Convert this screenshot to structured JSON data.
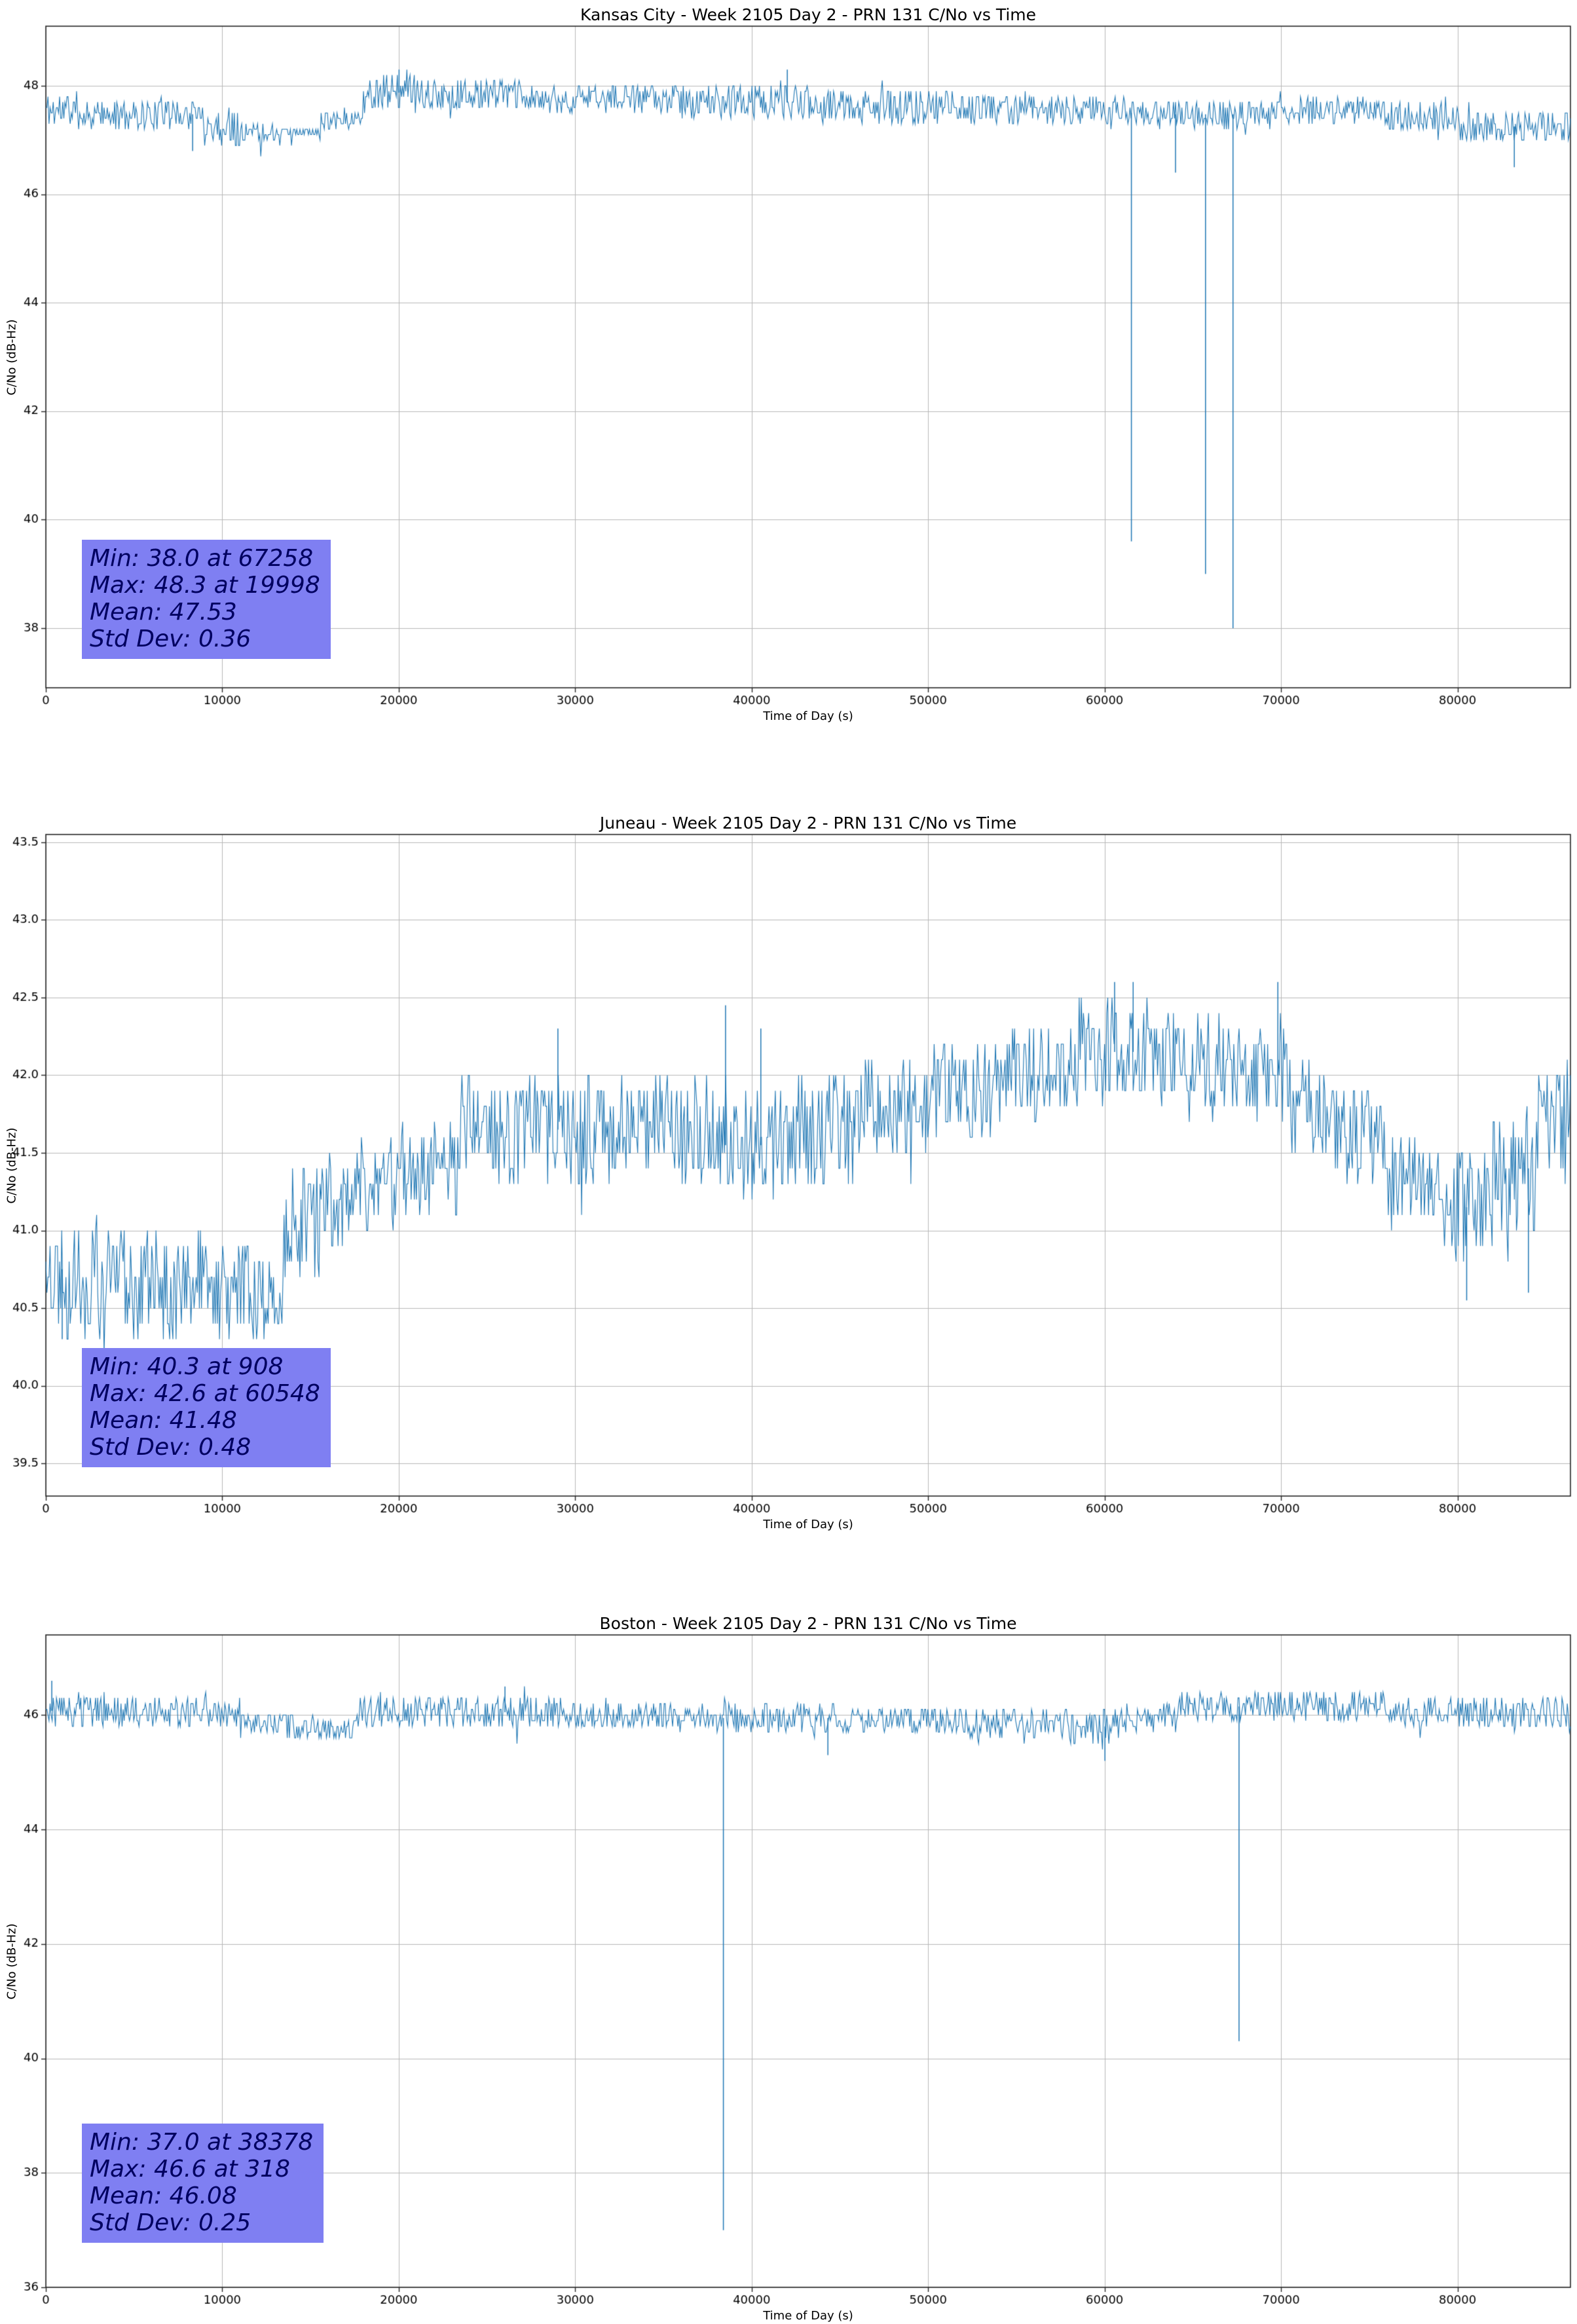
{
  "page": {
    "background": "#ffffff"
  },
  "chart_data": [
    {
      "type": "line",
      "title": "Kansas City - Week 2105 Day 2 - PRN 131 C/No vs Time",
      "xlabel": "Time of Day (s)",
      "ylabel": "C/No (dB-Hz)",
      "xlim": [
        0,
        86400
      ],
      "ylim": [
        36.9,
        49.1
      ],
      "xticks": [
        0,
        10000,
        20000,
        30000,
        40000,
        50000,
        60000,
        70000,
        80000
      ],
      "xtick_labels": [
        "0",
        "10000",
        "20000",
        "30000",
        "40000",
        "50000",
        "60000",
        "70000",
        "80000"
      ],
      "yticks": [
        38,
        40,
        42,
        44,
        46,
        48
      ],
      "ytick_labels": [
        "38",
        "40",
        "42",
        "44",
        "46",
        "48"
      ],
      "grid": true,
      "legend": "none",
      "line_color": "#1f77b4",
      "grid_color": "#b8b8b8",
      "seed": 11,
      "stats": {
        "min_value": 38.0,
        "min_time": 67258,
        "max_value": 48.3,
        "max_time": 19998,
        "mean": 47.53,
        "std_dev": 0.36,
        "box_color": "#7f7ff2",
        "lines": [
          "Min: 38.0 at 67258",
          "Max: 48.3 at 19998",
          "Mean: 47.53",
          "Std Dev: 0.36"
        ]
      },
      "band_segments": [
        [
          0,
          2000,
          47.2,
          47.9
        ],
        [
          2000,
          9000,
          47.2,
          47.75
        ],
        [
          9000,
          11000,
          46.9,
          47.6
        ],
        [
          11000,
          13000,
          46.95,
          47.35
        ],
        [
          13000,
          15500,
          47.05,
          47.25
        ],
        [
          15500,
          18000,
          47.2,
          47.6
        ],
        [
          18000,
          21000,
          47.5,
          48.25
        ],
        [
          21000,
          27000,
          47.55,
          48.1
        ],
        [
          27000,
          36000,
          47.5,
          48.0
        ],
        [
          36000,
          44000,
          47.4,
          48.0
        ],
        [
          44000,
          52000,
          47.3,
          47.95
        ],
        [
          52000,
          60000,
          47.3,
          47.85
        ],
        [
          60000,
          64000,
          47.2,
          47.8
        ],
        [
          64000,
          70000,
          47.2,
          47.75
        ],
        [
          70000,
          76000,
          47.3,
          47.8
        ],
        [
          76000,
          80000,
          47.15,
          47.7
        ],
        [
          80000,
          86401,
          46.95,
          47.55
        ]
      ],
      "spikes": [
        {
          "x": 19998,
          "y": 48.3
        },
        {
          "x": 42000,
          "y": 48.3
        },
        {
          "x": 8300,
          "y": 46.8
        },
        {
          "x": 61500,
          "y": 39.6
        },
        {
          "x": 64000,
          "y": 46.4
        },
        {
          "x": 65700,
          "y": 39.0
        },
        {
          "x": 67258,
          "y": 38.0
        },
        {
          "x": 83200,
          "y": 46.5
        }
      ]
    },
    {
      "type": "line",
      "title": "Juneau - Week 2105 Day 2 - PRN 131 C/No vs Time",
      "xlabel": "Time of Day (s)",
      "ylabel": "C/No (dB-Hz)",
      "xlim": [
        0,
        86400
      ],
      "ylim": [
        39.29,
        43.55
      ],
      "xticks": [
        0,
        10000,
        20000,
        30000,
        40000,
        50000,
        60000,
        70000,
        80000
      ],
      "xtick_labels": [
        "0",
        "10000",
        "20000",
        "30000",
        "40000",
        "50000",
        "60000",
        "70000",
        "80000"
      ],
      "yticks": [
        39.5,
        40.0,
        40.5,
        41.0,
        41.5,
        42.0,
        42.5,
        43.0,
        43.5
      ],
      "ytick_labels": [
        "39.5",
        "40.0",
        "40.5",
        "41.0",
        "41.5",
        "42.0",
        "42.5",
        "43.0",
        "43.5"
      ],
      "grid": true,
      "legend": "none",
      "line_color": "#1f77b4",
      "grid_color": "#b8b8b8",
      "seed": 22,
      "stats": {
        "min_value": 40.3,
        "min_time": 908,
        "max_value": 42.6,
        "max_time": 60548,
        "mean": 41.48,
        "std_dev": 0.48,
        "box_color": "#7f7ff2",
        "lines": [
          "Min: 40.3 at 908",
          "Max: 42.6 at 60548",
          "Mean: 41.48",
          "Std Dev: 0.48"
        ]
      },
      "band_segments": [
        [
          0,
          1200,
          40.4,
          41.1
        ],
        [
          1200,
          5000,
          40.3,
          41.1
        ],
        [
          5000,
          9000,
          40.3,
          41.0
        ],
        [
          9000,
          13500,
          40.3,
          40.9
        ],
        [
          13500,
          15500,
          40.7,
          41.4
        ],
        [
          15500,
          17500,
          40.9,
          41.5
        ],
        [
          17500,
          20000,
          41.0,
          41.6
        ],
        [
          20000,
          23500,
          41.1,
          41.7
        ],
        [
          23500,
          30000,
          41.3,
          42.0
        ],
        [
          30000,
          38000,
          41.3,
          42.0
        ],
        [
          38000,
          42000,
          41.2,
          41.9
        ],
        [
          42000,
          46000,
          41.3,
          42.0
        ],
        [
          46000,
          50000,
          41.5,
          42.1
        ],
        [
          50000,
          54000,
          41.6,
          42.2
        ],
        [
          54000,
          58000,
          41.7,
          42.3
        ],
        [
          58000,
          63000,
          41.8,
          42.5
        ],
        [
          63000,
          67000,
          41.8,
          42.4
        ],
        [
          67000,
          70500,
          41.7,
          42.3
        ],
        [
          70500,
          73000,
          41.5,
          42.1
        ],
        [
          73000,
          76000,
          41.3,
          41.9
        ],
        [
          76000,
          79000,
          41.0,
          41.6
        ],
        [
          79000,
          82000,
          40.8,
          41.5
        ],
        [
          82000,
          84500,
          41.0,
          41.8
        ],
        [
          84500,
          86401,
          41.3,
          42.1
        ]
      ],
      "spikes": [
        {
          "x": 908,
          "y": 40.3
        },
        {
          "x": 29000,
          "y": 42.3
        },
        {
          "x": 38500,
          "y": 42.45
        },
        {
          "x": 40500,
          "y": 42.3
        },
        {
          "x": 60548,
          "y": 42.6
        },
        {
          "x": 61600,
          "y": 42.6
        },
        {
          "x": 69800,
          "y": 42.6
        },
        {
          "x": 80500,
          "y": 40.55
        },
        {
          "x": 84000,
          "y": 40.6
        }
      ]
    },
    {
      "type": "line",
      "title": "Boston - Week 2105 Day 2 - PRN 131 C/No vs Time",
      "xlabel": "Time of Day (s)",
      "ylabel": "C/No (dB-Hz)",
      "xlim": [
        0,
        86400
      ],
      "ylim": [
        36.0,
        47.4
      ],
      "xticks": [
        0,
        10000,
        20000,
        30000,
        40000,
        50000,
        60000,
        70000,
        80000
      ],
      "xtick_labels": [
        "0",
        "10000",
        "20000",
        "30000",
        "40000",
        "50000",
        "60000",
        "70000",
        "80000"
      ],
      "yticks": [
        36,
        38,
        40,
        42,
        44,
        46
      ],
      "ytick_labels": [
        "36",
        "38",
        "40",
        "42",
        "44",
        "46"
      ],
      "grid": true,
      "legend": "none",
      "line_color": "#1f77b4",
      "grid_color": "#b8b8b8",
      "seed": 33,
      "stats": {
        "min_value": 37.0,
        "min_time": 38378,
        "max_value": 46.6,
        "max_time": 318,
        "mean": 46.08,
        "std_dev": 0.25,
        "box_color": "#7f7ff2",
        "lines": [
          "Min: 37.0 at 38378",
          "Max: 46.6 at 318",
          "Mean: 46.08",
          "Std Dev: 0.25"
        ]
      },
      "band_segments": [
        [
          0,
          4000,
          45.8,
          46.35
        ],
        [
          4000,
          11000,
          45.8,
          46.3
        ],
        [
          11000,
          14000,
          45.6,
          46.05
        ],
        [
          14000,
          17500,
          45.55,
          45.95
        ],
        [
          17500,
          24000,
          45.8,
          46.35
        ],
        [
          24000,
          30000,
          45.8,
          46.3
        ],
        [
          30000,
          38000,
          45.75,
          46.2
        ],
        [
          38000,
          45000,
          45.7,
          46.2
        ],
        [
          45000,
          52000,
          45.7,
          46.15
        ],
        [
          52000,
          58000,
          45.6,
          46.1
        ],
        [
          58000,
          61000,
          45.5,
          46.1
        ],
        [
          61000,
          64000,
          45.7,
          46.2
        ],
        [
          64000,
          71000,
          45.9,
          46.4
        ],
        [
          71000,
          76000,
          45.9,
          46.45
        ],
        [
          76000,
          80000,
          45.8,
          46.3
        ],
        [
          80000,
          86401,
          45.7,
          46.3
        ]
      ],
      "spikes": [
        {
          "x": 318,
          "y": 46.6
        },
        {
          "x": 26000,
          "y": 46.5
        },
        {
          "x": 38378,
          "y": 37.0
        },
        {
          "x": 44300,
          "y": 45.3
        },
        {
          "x": 60000,
          "y": 45.2
        },
        {
          "x": 67600,
          "y": 40.3
        }
      ]
    }
  ]
}
